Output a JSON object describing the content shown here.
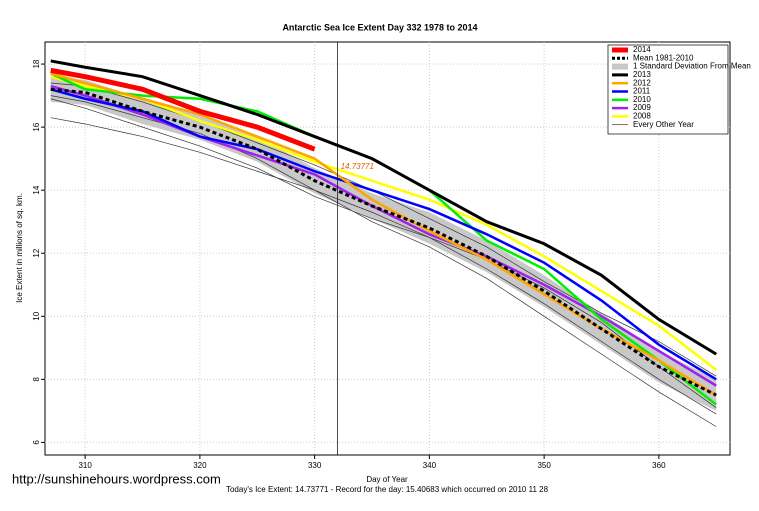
{
  "chart_data": {
    "type": "line",
    "title": "Antarctic Sea Ice Extent Day 332 1978 to 2014",
    "x_label": "Day of Year",
    "y_label": "Ice Extent in millions of sq. km.",
    "footer": "Today's Ice Extent: 14.73771  - Record for the day: 15.40683 which occurred on 2010 11 28",
    "watermark": "http://sunshinehours.wordpress.com",
    "grid": true,
    "legend_position": "top-right",
    "xlim": [
      306.5,
      366.2
    ],
    "ylim": [
      5.6,
      18.7
    ],
    "xticks": [
      310,
      320,
      330,
      340,
      350,
      360
    ],
    "yticks": [
      6,
      8,
      10,
      12,
      14,
      16,
      18
    ],
    "x": [
      307,
      310,
      315,
      320,
      325,
      330,
      335,
      340,
      345,
      350,
      355,
      360,
      365
    ],
    "annotation": {
      "x": 332,
      "value": 14.73771
    },
    "series": [
      {
        "name": "2014",
        "color": "#ff0000",
        "width": 5,
        "values": [
          17.8,
          17.6,
          17.2,
          16.5,
          16.0,
          15.3,
          null,
          null,
          null,
          null,
          null,
          null,
          null
        ]
      },
      {
        "name": "Mean 1981-2010",
        "color": "#000000",
        "width": 3,
        "dashed": true,
        "values": [
          17.2,
          17.1,
          16.5,
          16.0,
          15.3,
          14.3,
          13.5,
          12.8,
          11.9,
          10.8,
          9.6,
          8.4,
          7.5
        ]
      },
      {
        "name": "2013",
        "color": "#000000",
        "width": 3,
        "values": [
          18.1,
          17.9,
          17.6,
          17.0,
          16.4,
          15.7,
          15.0,
          14.0,
          13.0,
          12.3,
          11.3,
          9.9,
          8.8
        ]
      },
      {
        "name": "2012",
        "color": "#ffa500",
        "width": 2.5,
        "values": [
          17.7,
          17.4,
          16.9,
          16.4,
          15.7,
          15.0,
          13.7,
          12.7,
          11.8,
          10.7,
          9.6,
          8.6,
          7.5
        ]
      },
      {
        "name": "2011",
        "color": "#0000ff",
        "width": 2.5,
        "values": [
          17.2,
          16.9,
          16.5,
          15.7,
          15.3,
          14.6,
          14.0,
          13.4,
          12.6,
          11.7,
          10.5,
          9.1,
          8.0
        ]
      },
      {
        "name": "2010",
        "color": "#00ee00",
        "width": 2.5,
        "values": [
          17.7,
          17.2,
          17.0,
          16.9,
          16.5,
          15.7,
          15.0,
          14.0,
          12.4,
          11.5,
          9.9,
          8.6,
          7.2
        ]
      },
      {
        "name": "2009",
        "color": "#a020f0",
        "width": 2.5,
        "values": [
          17.3,
          17.0,
          16.4,
          15.7,
          15.1,
          14.5,
          13.5,
          12.6,
          11.9,
          11.0,
          10.0,
          8.9,
          7.8
        ]
      },
      {
        "name": "2008",
        "color": "#ffff00",
        "width": 2.5,
        "values": [
          17.6,
          17.3,
          16.9,
          16.2,
          15.6,
          14.9,
          14.3,
          13.7,
          12.9,
          11.9,
          10.8,
          9.7,
          8.3
        ]
      }
    ],
    "band": {
      "name": "1 Standard Deviation From Mean",
      "color": "#c8c8c8",
      "lower": [
        16.8,
        16.7,
        16.1,
        15.6,
        14.9,
        13.9,
        13.1,
        12.3,
        11.4,
        10.3,
        9.1,
        7.9,
        7.0
      ],
      "upper": [
        17.6,
        17.5,
        16.9,
        16.4,
        15.7,
        14.7,
        13.9,
        13.3,
        12.4,
        11.3,
        10.1,
        8.9,
        8.0
      ]
    },
    "other_years": {
      "name": "Every Other Year",
      "color": "#333333",
      "lines": [
        [
          16.3,
          16.1,
          15.7,
          15.2,
          14.6,
          14.0,
          13.3,
          12.5,
          11.5,
          10.4,
          9.2,
          8.0,
          6.9
        ],
        [
          17.0,
          16.8,
          16.3,
          15.8,
          15.0,
          14.0,
          13.0,
          12.2,
          11.2,
          10.0,
          8.8,
          7.6,
          6.5
        ],
        [
          17.4,
          17.3,
          16.8,
          16.2,
          15.5,
          14.8,
          14.0,
          13.1,
          12.2,
          11.1,
          10.1,
          9.2,
          8.1
        ],
        [
          16.9,
          16.6,
          16.0,
          15.4,
          14.7,
          13.8,
          13.1,
          12.5,
          11.8,
          10.9,
          9.8,
          8.4,
          7.1
        ]
      ]
    }
  }
}
